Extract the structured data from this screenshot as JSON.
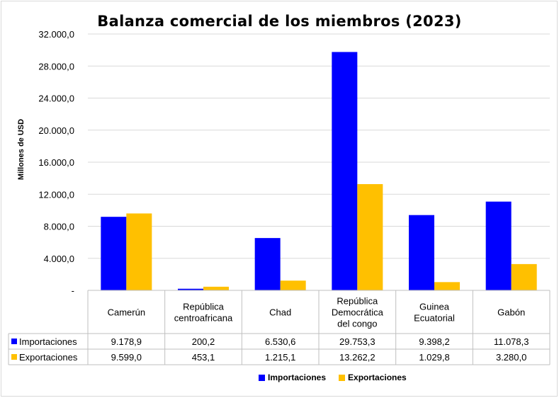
{
  "chart_data": {
    "type": "bar",
    "title": "Balanza comercial de los miembros (2023)",
    "ylabel": "Millones de USD",
    "ylim": [
      0,
      32000
    ],
    "yticks": [
      0,
      4000,
      8000,
      12000,
      16000,
      20000,
      24000,
      28000,
      32000
    ],
    "ytick_labels": [
      "-",
      "4.000,0",
      "8.000,0",
      "12.000,0",
      "16.000,0",
      "20.000,0",
      "24.000,0",
      "28.000,0",
      "32.000,0"
    ],
    "categories": [
      [
        "Camerún"
      ],
      [
        "República",
        "centroafricana"
      ],
      [
        "Chad"
      ],
      [
        "República",
        "Democrática",
        "del congo"
      ],
      [
        "Guinea",
        "Ecuatorial"
      ],
      [
        "Gabón"
      ]
    ],
    "series": [
      {
        "name": "Importaciones",
        "color": "#0000ff",
        "values": [
          9178.9,
          200.2,
          6530.6,
          29753.3,
          9398.2,
          11078.3
        ],
        "labels": [
          "9.178,9",
          "200,2",
          "6.530,6",
          "29.753,3",
          "9.398,2",
          "11.078,3"
        ]
      },
      {
        "name": "Exportaciones",
        "color": "#ffc000",
        "values": [
          9599.0,
          453.1,
          1215.1,
          13262.2,
          1029.8,
          3280.0
        ],
        "labels": [
          "9.599,0",
          "453,1",
          "1.215,1",
          "13.262,2",
          "1.029,8",
          "3.280,0"
        ]
      }
    ],
    "grid": true,
    "legend_position": "bottom",
    "data_table": true
  }
}
